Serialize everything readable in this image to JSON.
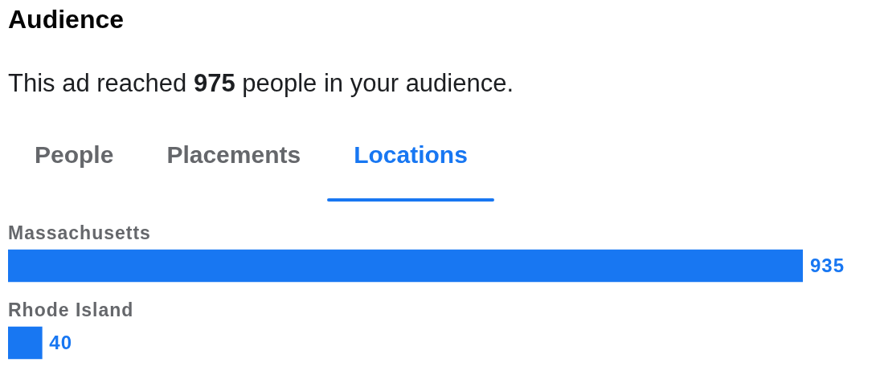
{
  "chart_data": {
    "type": "bar",
    "orientation": "horizontal",
    "title": "Audience",
    "subtitle": "This ad reached 975 people in your audience.",
    "annotations": [
      "People",
      "Placements",
      "Locations"
    ],
    "categories": [
      "Massachusetts",
      "Rhode Island"
    ],
    "values": [
      935,
      40
    ],
    "color": "#1877f2",
    "data_labels": true
  }
}
